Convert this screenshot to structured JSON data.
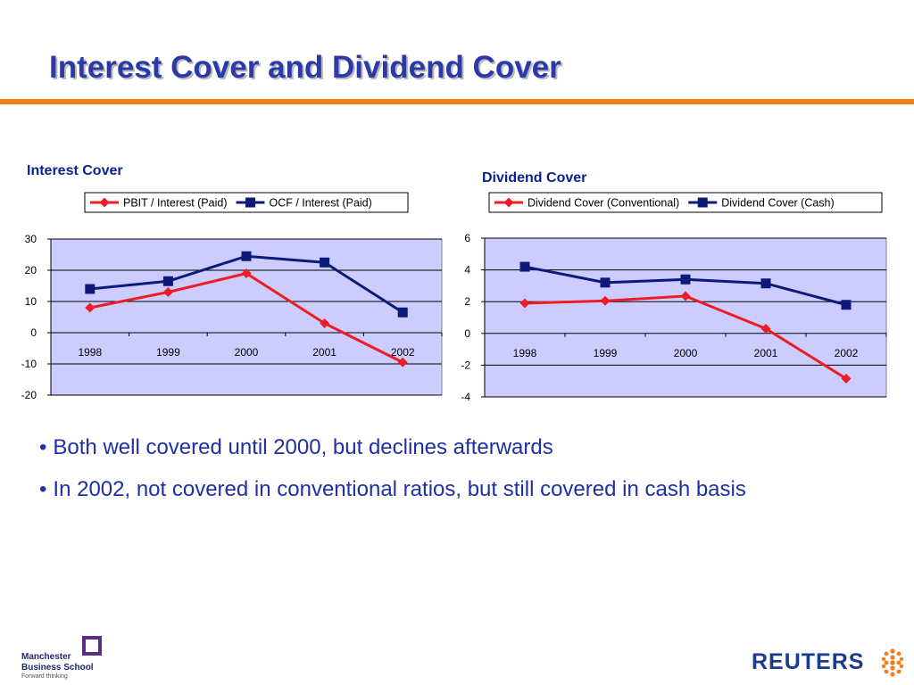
{
  "slide": {
    "title": "Interest Cover and Dividend Cover",
    "bullets": [
      "Both well covered until 2000, but declines afterwards",
      "In 2002, not covered in conventional ratios, but still covered in cash basis"
    ],
    "bullet_glyph": "•"
  },
  "colors": {
    "title": "#2b3aa8",
    "rule": "#f07f1e",
    "plot_bg": "#ccccff",
    "series_red": "#ee1c24",
    "series_navy": "#0c1b78"
  },
  "logos": {
    "mbs_line1": "Manchester",
    "mbs_line2": "Business School",
    "mbs_line3": "Forward thinking",
    "reuters": "REUTERS"
  },
  "chart_data": [
    {
      "type": "line",
      "title": "Interest Cover",
      "categories": [
        "1998",
        "1999",
        "2000",
        "2001",
        "2002"
      ],
      "ylim": [
        -20,
        30
      ],
      "yticks": [
        30,
        20,
        10,
        0,
        -10,
        -20
      ],
      "grid": true,
      "legend_position": "top",
      "series": [
        {
          "name": "PBIT / Interest (Paid)",
          "marker": "diamond",
          "color": "#ee1c24",
          "values": [
            8,
            13,
            19,
            3,
            -9.5
          ]
        },
        {
          "name": "OCF / Interest (Paid)",
          "marker": "square",
          "color": "#0c1b78",
          "values": [
            14,
            16.5,
            24.5,
            22.5,
            6.5
          ]
        }
      ]
    },
    {
      "type": "line",
      "title": "Dividend Cover",
      "categories": [
        "1998",
        "1999",
        "2000",
        "2001",
        "2002"
      ],
      "ylim": [
        -4,
        6
      ],
      "yticks": [
        6,
        4,
        2,
        0,
        -2,
        -4
      ],
      "grid": true,
      "legend_position": "top",
      "series": [
        {
          "name": "Dividend Cover (Conventional)",
          "marker": "diamond",
          "color": "#ee1c24",
          "values": [
            1.9,
            2.05,
            2.35,
            0.3,
            -2.85
          ]
        },
        {
          "name": "Dividend Cover (Cash)",
          "marker": "square",
          "color": "#0c1b78",
          "values": [
            4.2,
            3.2,
            3.4,
            3.15,
            1.8
          ]
        }
      ]
    }
  ]
}
